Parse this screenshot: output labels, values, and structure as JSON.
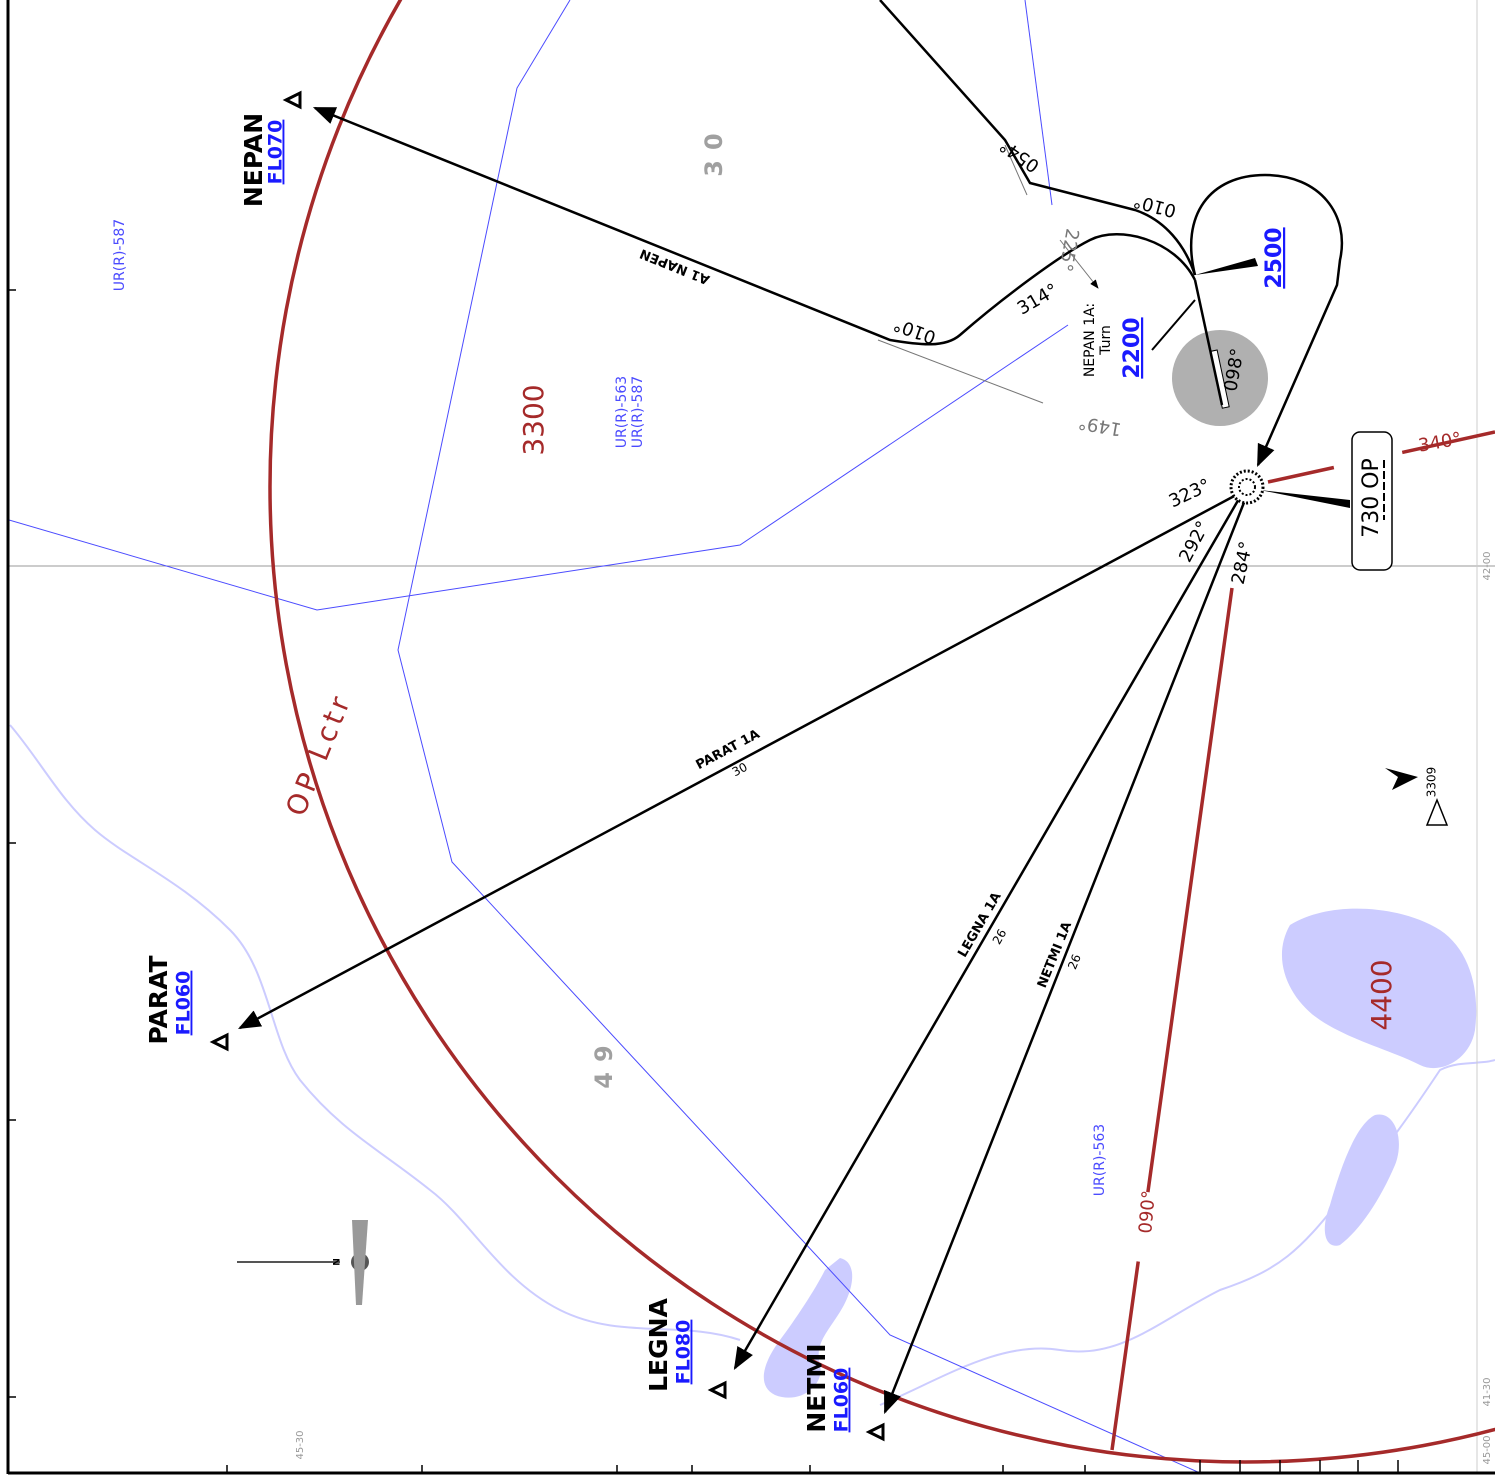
{
  "waypoints": [
    {
      "name": "NEPAN",
      "level": "FL070"
    },
    {
      "name": "PARAT",
      "level": "FL060"
    },
    {
      "name": "LEGNA",
      "level": "FL080"
    },
    {
      "name": "NETMI",
      "level": "FL060"
    }
  ],
  "routes": [
    {
      "name": "A1 NAPEN"
    },
    {
      "name": "PARAT 1A",
      "distance": "30"
    },
    {
      "name": "LEGNA 1A",
      "distance": "26"
    },
    {
      "name": "NETMI 1A",
      "distance": "26"
    }
  ],
  "navaid": {
    "name": "OP Lctr",
    "box": "730 OP"
  },
  "altitudes": [
    "3300",
    "4400"
  ],
  "msa_sectors": [
    "30",
    "49"
  ],
  "restricted_areas": [
    "UR(R)-587",
    "UR(R)-563",
    "UR(R)-587",
    "UR(R)-563"
  ],
  "procedure_note": {
    "title": "NEPAN 1A:",
    "subtitle": "Turn",
    "altitude": "2200"
  },
  "holding_altitude": "2500",
  "bearings": [
    "340°",
    "090°",
    "323°",
    "292°",
    "284°",
    "314°",
    "010°",
    "010°",
    "054°",
    "225°",
    "149°",
    "098°"
  ],
  "obstacle": "3309",
  "grid_labels": [
    "42-00",
    "41-30",
    "45-00",
    "45-30"
  ],
  "compass": "N"
}
